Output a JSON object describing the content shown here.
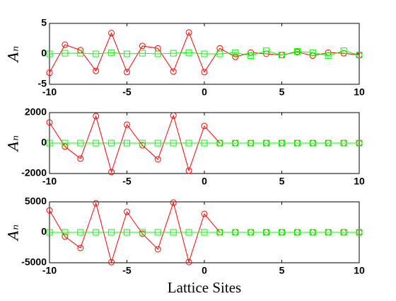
{
  "chart_data": [
    {
      "type": "line",
      "ylabel": "Aₙ",
      "x": [
        -10,
        -9,
        -8,
        -7,
        -6,
        -5,
        -4,
        -3,
        -2,
        -1,
        0,
        1,
        2,
        3,
        4,
        5,
        6,
        7,
        8,
        9,
        10
      ],
      "xlim": [
        -10,
        10
      ],
      "xticks": [
        -10,
        -5,
        0,
        5,
        10
      ],
      "ylim": [
        -5,
        5
      ],
      "yticks": [
        -5,
        0,
        5
      ],
      "series": [
        {
          "color": "#ff0000",
          "marker": "circle",
          "values": [
            -3.1,
            1.5,
            0.6,
            -2.8,
            3.4,
            -3.0,
            1.3,
            0.9,
            -2.9,
            3.5,
            -3.0,
            0.9,
            -0.5,
            0.2,
            0.0,
            -0.2,
            0.3,
            -0.3,
            0.2,
            0.1,
            -0.2
          ]
        },
        {
          "color": "#00ff00",
          "marker": "square",
          "values": [
            0.0,
            0.1,
            0.1,
            0.0,
            0.2,
            0.0,
            0.1,
            0.0,
            0.1,
            0.2,
            0.0,
            0.0,
            0.2,
            -0.3,
            0.5,
            -0.2,
            0.4,
            0.2,
            -0.3,
            0.5,
            -0.2
          ]
        }
      ]
    },
    {
      "type": "line",
      "ylabel": "Aₙ",
      "x": [
        -10,
        -9,
        -8,
        -7,
        -6,
        -5,
        -4,
        -3,
        -2,
        -1,
        0,
        1,
        2,
        3,
        4,
        5,
        6,
        7,
        8,
        9,
        10
      ],
      "xlim": [
        -10,
        10
      ],
      "xticks": [
        -10,
        -5,
        0,
        5,
        10
      ],
      "ylim": [
        -2000,
        2000
      ],
      "yticks": [
        -2000,
        0,
        2000
      ],
      "series": [
        {
          "color": "#ff0000",
          "marker": "circle",
          "values": [
            1350,
            -230,
            -1020,
            1770,
            -1900,
            1210,
            -140,
            -1070,
            1810,
            -1810,
            1120,
            0,
            0,
            0,
            0,
            0,
            0,
            0,
            0,
            0,
            0
          ]
        },
        {
          "color": "#00ff00",
          "marker": "square",
          "values": [
            0,
            0,
            0,
            0,
            0,
            0,
            0,
            0,
            0,
            0,
            0,
            0,
            0,
            0,
            0,
            0,
            0,
            0,
            0,
            0,
            0
          ]
        }
      ]
    },
    {
      "type": "line",
      "ylabel": "Aₙ",
      "xlabel": "Lattice Sites",
      "x": [
        -10,
        -9,
        -8,
        -7,
        -6,
        -5,
        -4,
        -3,
        -2,
        -1,
        0,
        1,
        2,
        3,
        4,
        5,
        6,
        7,
        8,
        9,
        10
      ],
      "xlim": [
        -10,
        10
      ],
      "xticks": [
        -10,
        -5,
        0,
        5,
        10
      ],
      "ylim": [
        -5000,
        5000
      ],
      "yticks": [
        -5000,
        0,
        5000
      ],
      "series": [
        {
          "color": "#ff0000",
          "marker": "circle",
          "values": [
            3600,
            -700,
            -2560,
            4770,
            -4900,
            3370,
            -230,
            -2790,
            4880,
            -4880,
            3020,
            0,
            0,
            0,
            0,
            0,
            0,
            0,
            0,
            0,
            0
          ]
        },
        {
          "color": "#00ff00",
          "marker": "square",
          "values": [
            0,
            0,
            0,
            0,
            0,
            0,
            0,
            0,
            0,
            0,
            0,
            0,
            0,
            0,
            0,
            0,
            0,
            0,
            0,
            0,
            0
          ]
        }
      ]
    }
  ]
}
